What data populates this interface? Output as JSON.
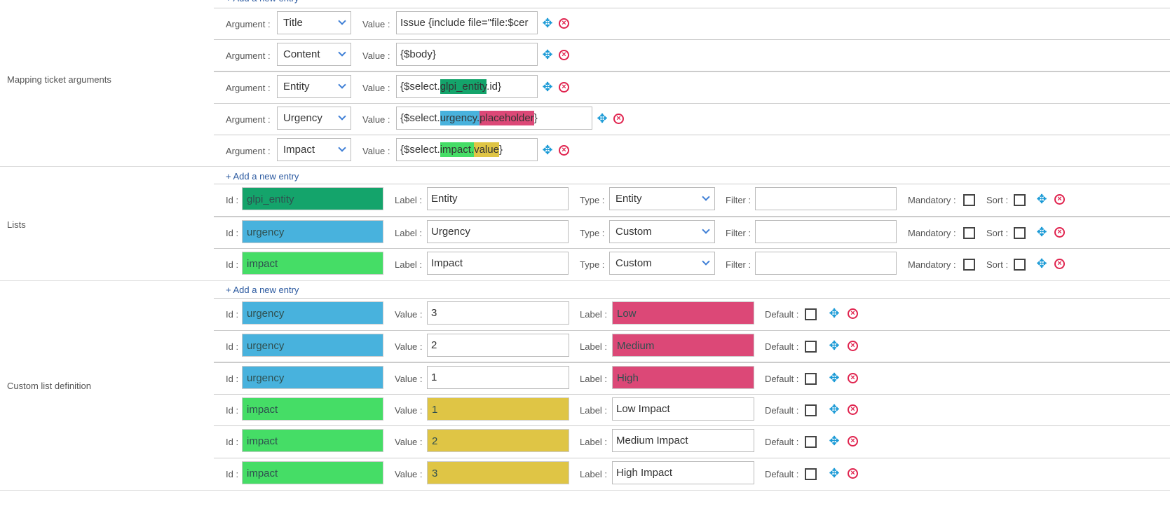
{
  "add_entry_label": "+ Add a new entry",
  "colors": {
    "glpi_entity": "#14a46b",
    "urgency": "#48b2dd",
    "impact": "#45dd66",
    "label_pink": "#dc4877",
    "value_yellow": "#dfc545",
    "icon_move": "#1a9ad6",
    "icon_delete": "#e0234e"
  },
  "mapping": {
    "title": "Mapping ticket arguments",
    "argument_label": "Argument :",
    "value_label": "Value :",
    "rows": [
      {
        "argument": "Title",
        "value_parts": [
          {
            "text": "Issue {include file=\"file:$cer"
          }
        ]
      },
      {
        "argument": "Content",
        "value_parts": [
          {
            "text": "{$body}"
          }
        ]
      },
      {
        "argument": "Entity",
        "value_parts": [
          {
            "text": "{$select."
          },
          {
            "text": "glpi_entity",
            "color": "#14a46b"
          },
          {
            "text": ".id}"
          }
        ]
      },
      {
        "argument": "Urgency",
        "value_parts": [
          {
            "text": "{$select."
          },
          {
            "text": "urgency.",
            "color": "#48b2dd"
          },
          {
            "text": "placeholder",
            "color": "#dc4877"
          },
          {
            "text": "}"
          }
        ]
      },
      {
        "argument": "Impact",
        "value_parts": [
          {
            "text": "{$select."
          },
          {
            "text": "impact.",
            "color": "#45dd66"
          },
          {
            "text": "value",
            "color": "#dfc545"
          },
          {
            "text": "}"
          }
        ]
      }
    ]
  },
  "lists": {
    "title": "Lists",
    "id_label": "Id :",
    "label_label": "Label :",
    "type_label": "Type :",
    "filter_label": "Filter :",
    "mandatory_label": "Mandatory :",
    "sort_label": "Sort :",
    "rows": [
      {
        "id": "glpi_entity",
        "id_color": "#14a46b",
        "label": "Entity",
        "type": "Entity",
        "filter": "",
        "mandatory": false,
        "sort": false
      },
      {
        "id": "urgency",
        "id_color": "#48b2dd",
        "label": "Urgency",
        "type": "Custom",
        "filter": "",
        "mandatory": false,
        "sort": false
      },
      {
        "id": "impact",
        "id_color": "#45dd66",
        "label": "Impact",
        "type": "Custom",
        "filter": "",
        "mandatory": false,
        "sort": false
      }
    ]
  },
  "custom": {
    "title": "Custom list definition",
    "id_label": "Id :",
    "value_label": "Value :",
    "label_label": "Label :",
    "default_label": "Default :",
    "rows": [
      {
        "id": "urgency",
        "id_color": "#48b2dd",
        "value": "3",
        "value_color": "",
        "label": "Low",
        "label_color": "#dc4877",
        "default": false
      },
      {
        "id": "urgency",
        "id_color": "#48b2dd",
        "value": "2",
        "value_color": "",
        "label": "Medium",
        "label_color": "#dc4877",
        "default": false
      },
      {
        "id": "urgency",
        "id_color": "#48b2dd",
        "value": "1",
        "value_color": "",
        "label": "High",
        "label_color": "#dc4877",
        "default": false
      },
      {
        "id": "impact",
        "id_color": "#45dd66",
        "value": "1",
        "value_color": "#dfc545",
        "label": "Low Impact",
        "label_color": "",
        "default": false
      },
      {
        "id": "impact",
        "id_color": "#45dd66",
        "value": "2",
        "value_color": "#dfc545",
        "label": "Medium Impact",
        "label_color": "",
        "default": false
      },
      {
        "id": "impact",
        "id_color": "#45dd66",
        "value": "3",
        "value_color": "#dfc545",
        "label": "High Impact",
        "label_color": "",
        "default": false
      }
    ]
  }
}
